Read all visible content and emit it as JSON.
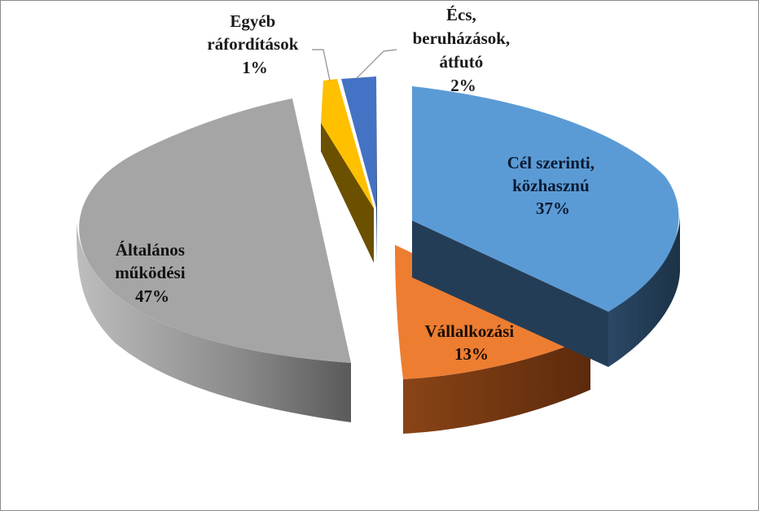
{
  "chart_data": {
    "type": "pie",
    "style": "3d-exploded",
    "title": "",
    "legend": "none",
    "slices": [
      {
        "label_lines": [
          "Cél szerinti,",
          "közhasznú"
        ],
        "percent_label": "37%",
        "value": 37,
        "color": "#5b9bd5",
        "side_color": "#243d57"
      },
      {
        "label_lines": [
          "Vállalkozási"
        ],
        "percent_label": "13%",
        "value": 13,
        "color": "#ed7d31",
        "side_color": "#7a3a12"
      },
      {
        "label_lines": [
          "Általános",
          "működési"
        ],
        "percent_label": "47%",
        "value": 47,
        "color": "#a5a5a5",
        "side_color": "#707070"
      },
      {
        "label_lines": [
          "Egyéb",
          "ráfordítások"
        ],
        "percent_label": "1%",
        "value": 1,
        "color": "#ffc000",
        "side_color": "#6b5000"
      },
      {
        "label_lines": [
          "Écs,",
          "beruházások,",
          "átfutó"
        ],
        "percent_label": "2%",
        "value": 2,
        "color": "#4472c4",
        "side_color": "#1f3a6b"
      }
    ]
  }
}
